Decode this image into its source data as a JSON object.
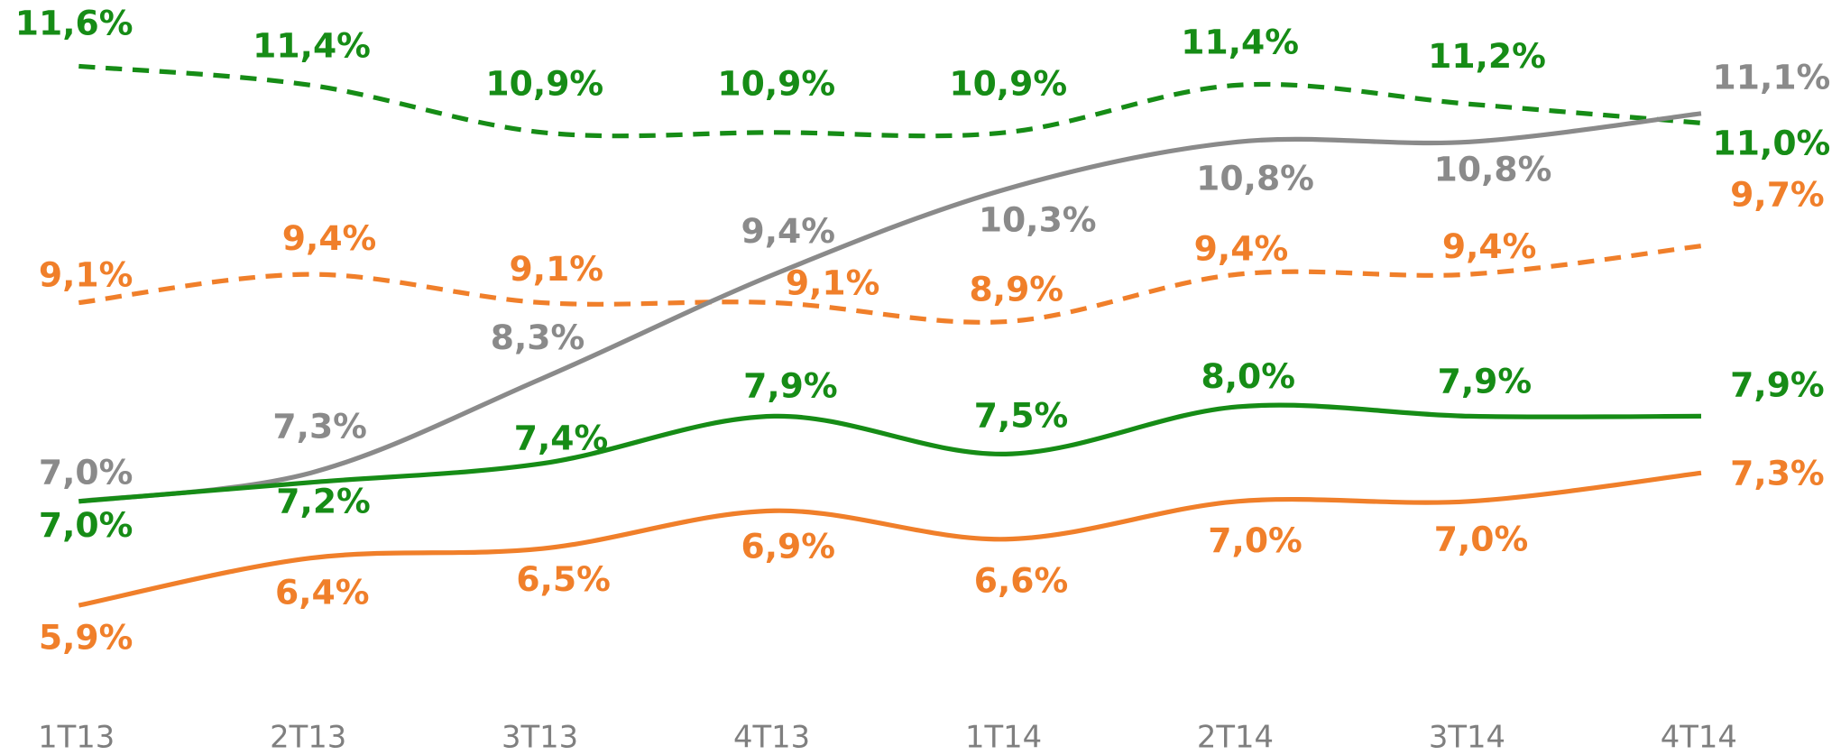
{
  "chart_data": {
    "type": "line",
    "categories": [
      "1T13",
      "2T13",
      "3T13",
      "4T13",
      "1T14",
      "2T14",
      "3T14",
      "4T14"
    ],
    "ylim": [
      5,
      12.3
    ],
    "series": [
      {
        "color": "#168c16",
        "style": "dashed",
        "values": [
          11.6,
          11.4,
          10.9,
          10.9,
          10.9,
          11.4,
          11.2,
          11.0
        ],
        "value_labels": [
          "11,6%",
          "11,4%",
          "10,9%",
          "10,9%",
          "10,9%",
          "11,4%",
          "11,2%",
          "11,0%"
        ]
      },
      {
        "color": "#f07f2a",
        "style": "dashed",
        "values": [
          9.1,
          9.4,
          9.1,
          9.1,
          8.9,
          9.4,
          9.4,
          9.7
        ],
        "value_labels": [
          "9,1%",
          "9,4%",
          "9,1%",
          "9,1%",
          "8,9%",
          "9,4%",
          "9,4%",
          "9,7%"
        ]
      },
      {
        "color": "#8a8a8a",
        "style": "solid",
        "values": [
          7.0,
          7.3,
          8.3,
          9.4,
          10.3,
          10.8,
          10.8,
          11.1
        ],
        "value_labels": [
          "7,0%",
          "7,3%",
          "8,3%",
          "9,4%",
          "10,3%",
          "10,8%",
          "10,8%",
          "11,1%"
        ]
      },
      {
        "color": "#168c16",
        "style": "solid",
        "values": [
          7.0,
          7.2,
          7.4,
          7.9,
          7.5,
          8.0,
          7.9,
          7.9
        ],
        "value_labels": [
          "7,0%",
          "7,2%",
          "7,4%",
          "7,9%",
          "7,5%",
          "8,0%",
          "7,9%",
          "7,9%"
        ]
      },
      {
        "color": "#f07f2a",
        "style": "solid",
        "values": [
          5.9,
          6.4,
          6.5,
          6.9,
          6.6,
          7.0,
          7.0,
          7.3
        ],
        "value_labels": [
          "5,9%",
          "6,4%",
          "6,5%",
          "6,9%",
          "6,6%",
          "7,0%",
          "7,0%",
          "7,3%"
        ]
      }
    ]
  }
}
